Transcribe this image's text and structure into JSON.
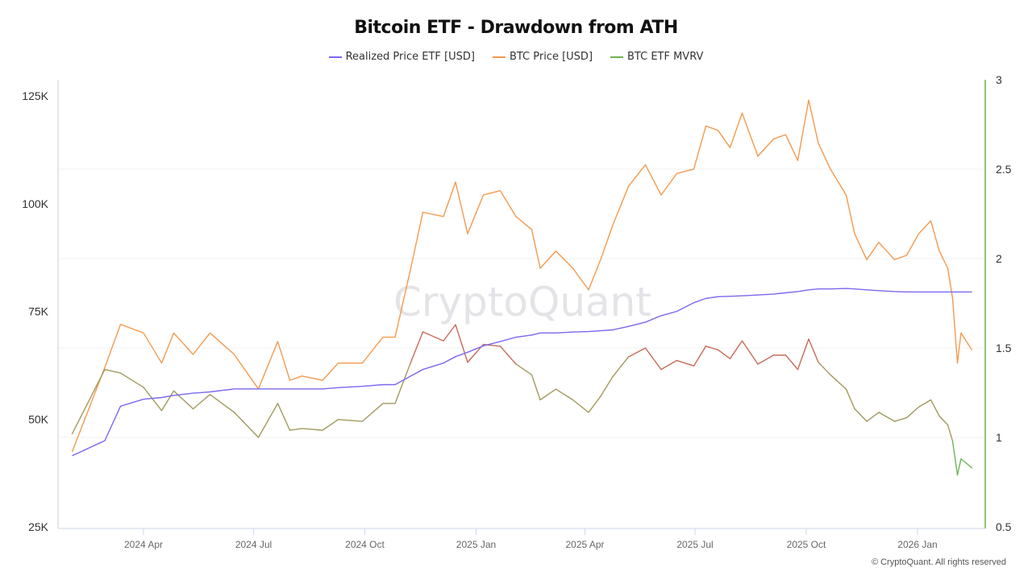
{
  "chart_data": {
    "type": "line",
    "title": "Bitcoin ETF - Drawdown from ATH",
    "legend_position": "top-center",
    "watermark": "CryptoQuant",
    "copyright": "© CryptoQuant. All rights reserved",
    "left_axis": {
      "range": [
        25000,
        125000
      ],
      "ticks": [
        25000,
        50000,
        75000,
        100000,
        125000
      ],
      "tick_labels": [
        "25K",
        "50K",
        "75K",
        "100K",
        "125K"
      ]
    },
    "right_axis": {
      "range": [
        0.5,
        3
      ],
      "ticks": [
        0.5,
        1,
        1.5,
        2,
        2.5,
        3
      ],
      "tick_labels": [
        "0.5",
        "1",
        "1.5",
        "2",
        "2.5",
        "3"
      ],
      "color": "#6ab04c"
    },
    "x_ticks": [
      {
        "date": "2024-04-01",
        "label": "2024 Apr"
      },
      {
        "date": "2024-07-01",
        "label": "2024 Jul"
      },
      {
        "date": "2024-10-01",
        "label": "2024 Oct"
      },
      {
        "date": "2025-01-01",
        "label": "2025 Jan"
      },
      {
        "date": "2025-04-01",
        "label": "2025 Apr"
      },
      {
        "date": "2025-07-01",
        "label": "2025 Jul"
      },
      {
        "date": "2025-10-01",
        "label": "2025 Oct"
      },
      {
        "date": "2026-01-01",
        "label": "2026 Jan"
      }
    ],
    "grid": true,
    "x": [
      "2024-02-02",
      "2024-02-29",
      "2024-03-13",
      "2024-04-01",
      "2024-04-16",
      "2024-04-26",
      "2024-05-12",
      "2024-05-26",
      "2024-06-15",
      "2024-07-05",
      "2024-07-21",
      "2024-07-31",
      "2024-08-10",
      "2024-08-27",
      "2024-09-09",
      "2024-09-29",
      "2024-10-16",
      "2024-10-26",
      "2024-11-08",
      "2024-11-18",
      "2024-12-05",
      "2024-12-15",
      "2024-12-25",
      "2025-01-07",
      "2025-01-21",
      "2025-02-03",
      "2025-02-16",
      "2025-02-23",
      "2025-03-08",
      "2025-03-22",
      "2025-04-04",
      "2025-04-14",
      "2025-04-24",
      "2025-05-07",
      "2025-05-21",
      "2025-06-03",
      "2025-06-16",
      "2025-06-30",
      "2025-07-10",
      "2025-07-20",
      "2025-07-30",
      "2025-08-09",
      "2025-08-22",
      "2025-09-04",
      "2025-09-14",
      "2025-09-24",
      "2025-10-03",
      "2025-10-11",
      "2025-10-21",
      "2025-11-03",
      "2025-11-10",
      "2025-11-20",
      "2025-11-30",
      "2025-12-13",
      "2025-12-23",
      "2026-01-02",
      "2026-01-12",
      "2026-01-19",
      "2026-01-26",
      "2026-01-30",
      "2026-02-03",
      "2026-02-06",
      "2026-02-15"
    ],
    "series": [
      {
        "name": "Realized Price ETF [USD]",
        "axis": "left",
        "color": "#7b68ee",
        "values": [
          41500,
          45000,
          53000,
          54600,
          55000,
          55500,
          56000,
          56300,
          57000,
          57000,
          57000,
          57000,
          57000,
          57000,
          57300,
          57600,
          58000,
          58000,
          60000,
          61500,
          63000,
          64500,
          65500,
          67000,
          68000,
          69000,
          69500,
          70000,
          70000,
          70200,
          70300,
          70500,
          70700,
          71500,
          72500,
          74000,
          75000,
          77000,
          78000,
          78400,
          78500,
          78600,
          78800,
          79000,
          79300,
          79600,
          80000,
          80200,
          80200,
          80300,
          80200,
          80000,
          79800,
          79600,
          79500,
          79500,
          79500,
          79500,
          79500,
          79500,
          79500,
          79500,
          79500
        ]
      },
      {
        "name": "BTC Price [USD]",
        "axis": "left",
        "color": "#f39a4f",
        "values": [
          42400,
          62000,
          72000,
          70000,
          63000,
          70000,
          65000,
          70000,
          65000,
          57000,
          68000,
          59000,
          60000,
          59000,
          63000,
          63000,
          69000,
          69000,
          85000,
          98000,
          97000,
          105000,
          93000,
          102000,
          103000,
          97000,
          94000,
          85000,
          89000,
          85000,
          80000,
          87000,
          95000,
          104000,
          109000,
          102000,
          107000,
          108000,
          118000,
          117000,
          113000,
          121000,
          111000,
          115000,
          116000,
          110000,
          124000,
          114000,
          108000,
          102000,
          93000,
          87000,
          91000,
          87000,
          88000,
          93000,
          96000,
          89000,
          85000,
          78000,
          63000,
          70000,
          66000
        ]
      },
      {
        "name": "BTC ETF MVRV",
        "axis": "right",
        "color": "#6ab04c",
        "segment_colors": {
          "high": "#c96a5a",
          "mid": "#a19a5e",
          "low": "#6db35a"
        },
        "values": [
          1.02,
          1.38,
          1.36,
          1.28,
          1.15,
          1.26,
          1.16,
          1.24,
          1.14,
          1.0,
          1.19,
          1.04,
          1.05,
          1.04,
          1.1,
          1.09,
          1.19,
          1.19,
          1.42,
          1.59,
          1.54,
          1.63,
          1.42,
          1.52,
          1.51,
          1.41,
          1.35,
          1.21,
          1.27,
          1.21,
          1.14,
          1.23,
          1.34,
          1.45,
          1.5,
          1.38,
          1.43,
          1.4,
          1.51,
          1.49,
          1.44,
          1.54,
          1.41,
          1.46,
          1.46,
          1.38,
          1.55,
          1.42,
          1.35,
          1.27,
          1.16,
          1.09,
          1.14,
          1.09,
          1.11,
          1.17,
          1.21,
          1.12,
          1.07,
          0.98,
          0.79,
          0.88,
          0.83
        ]
      }
    ]
  }
}
